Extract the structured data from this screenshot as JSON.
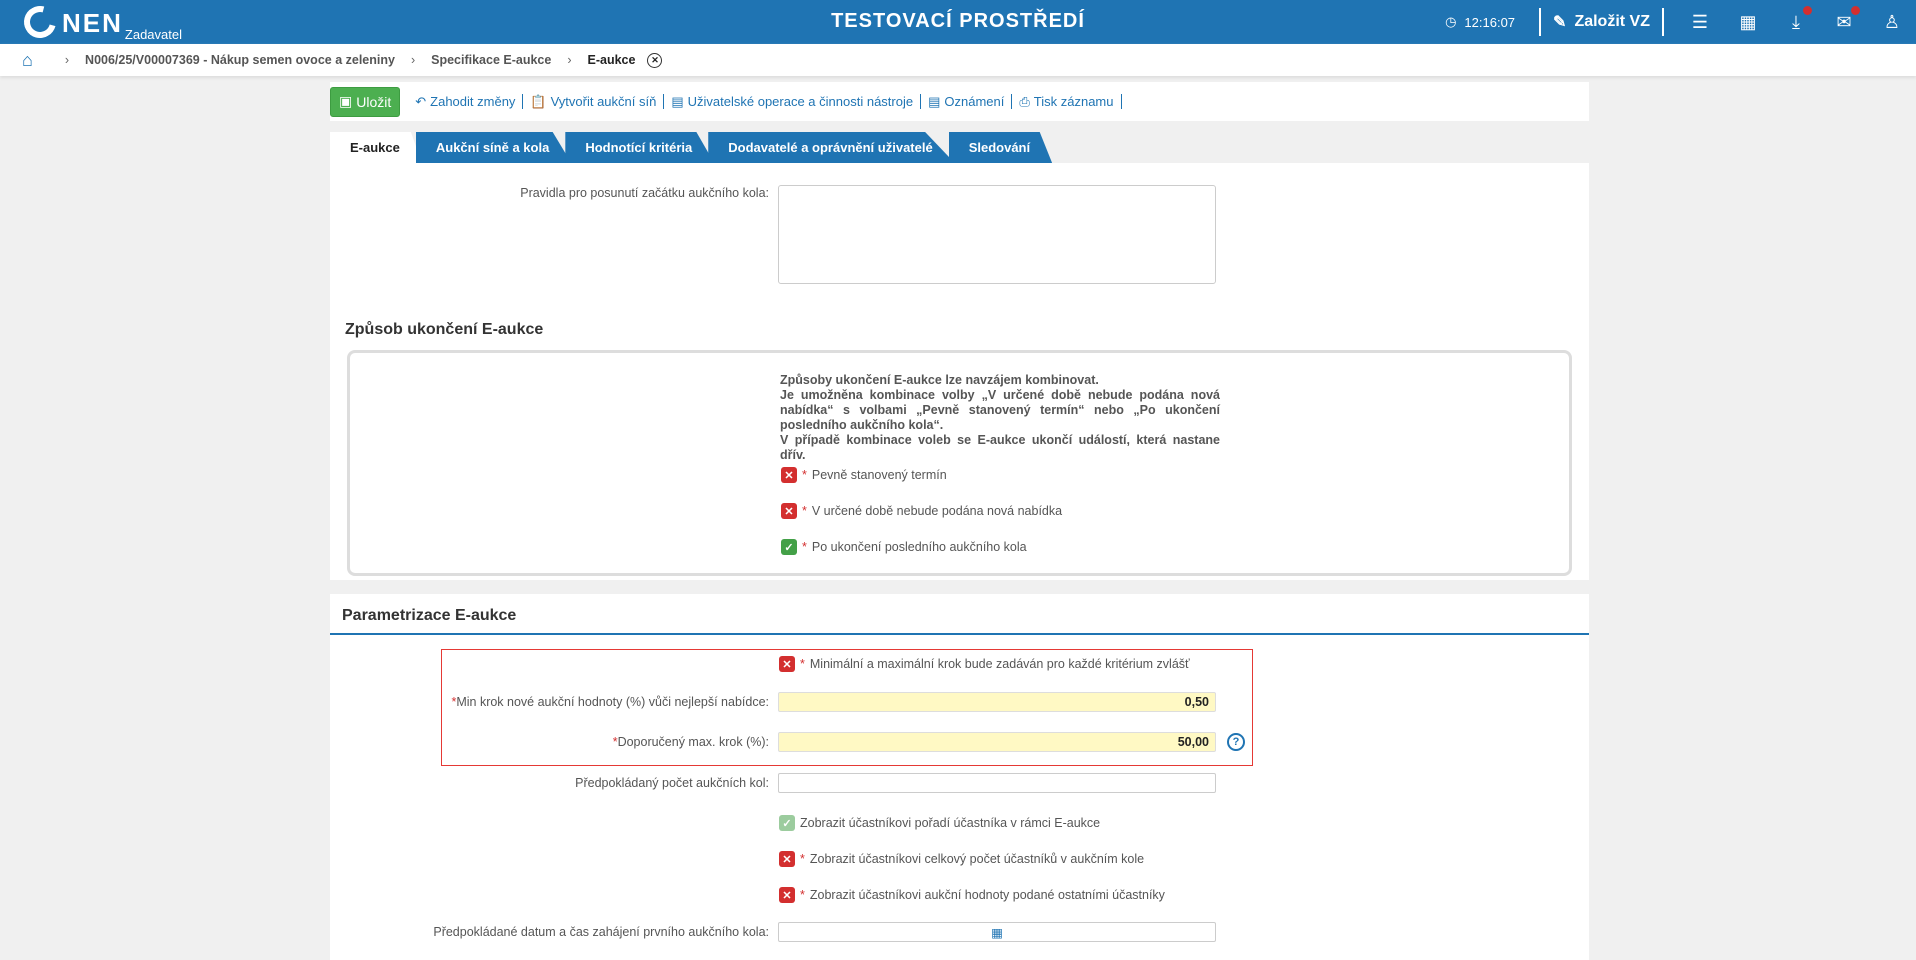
{
  "header": {
    "logo": "NEN",
    "logo_sub": "Zadavatel",
    "env_title": "TESTOVACÍ PROSTŘEDÍ",
    "time": "12:16:07",
    "create_label": "Založit VZ"
  },
  "breadcrumb": [
    "N006/25/V00007369 - Nákup semen ovoce a zeleniny",
    "Specifikace E-aukce",
    "E-aukce"
  ],
  "toolbar": {
    "save": "Uložit",
    "discard": "Zahodit změny",
    "create_network": "Vytvořit aukční síň",
    "user_ops": "Uživatelské operace a činnosti nástroje",
    "notices": "Oznámení",
    "print": "Tisk záznamu"
  },
  "tabs": [
    "E-aukce",
    "Aukční síně a kola",
    "Hodnotící kritéria",
    "Dodavatelé a oprávnění uživatelé",
    "Sledování"
  ],
  "form": {
    "rules_label": "Pravidla pro posunutí začátku aukčního kola:",
    "rules_value": "",
    "end_heading": "Způsob ukončení E-aukce",
    "end_note": [
      "Způsoby ukončení E-aukce lze navzájem kombinovat.",
      "Je umožněna kombinace volby „V určené době nebude podána nová nabídka“ s volbami „Pevně stanovený termín“ nebo „Po ukončení posledního aukčního kola“.",
      "V případě kombinace voleb se E-aukce ukončí událostí, která nastane dřív."
    ],
    "end_options": [
      {
        "label": "Pevně stanovený termín",
        "checked": false
      },
      {
        "label": "V určené době nebude podána nová nabídka",
        "checked": false
      },
      {
        "label": "Po ukončení posledního aukčního kola",
        "checked": true
      }
    ],
    "param_heading": "Parametrizace E-aukce",
    "step_per_criterion": {
      "label": "Minimální a maximální krok bude zadáván pro každé kritérium zvlášť",
      "checked": false
    },
    "min_step": {
      "label": "Min krok nové aukční hodnoty (%) vůči nejlepší nabídce:",
      "value": "0,50"
    },
    "max_step": {
      "label": "Doporučený max. krok (%):",
      "value": "50,00"
    },
    "rounds": {
      "label": "Předpokládaný počet aukčních kol:",
      "value": ""
    },
    "show_rank": {
      "label": "Zobrazit účastníkovi pořadí účastníka v rámci E-aukce",
      "checked": true
    },
    "show_count": {
      "label": "Zobrazit účastníkovi celkový počet účastníků v aukčním kole",
      "checked": false
    },
    "show_values": {
      "label": "Zobrazit účastníkovi aukční hodnoty podané ostatními účastníky",
      "checked": false
    },
    "start_date": {
      "label": "Předpokládané datum a čas zahájení prvního aukčního kola:",
      "value": ""
    }
  }
}
